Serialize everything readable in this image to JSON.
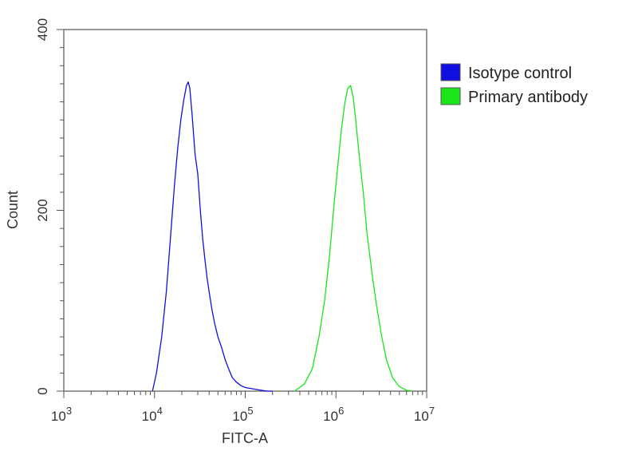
{
  "chart_data": {
    "type": "line",
    "xlabel": "FITC-A",
    "ylabel": "Count",
    "x_scale": "log",
    "xlim": [
      1000,
      10000000
    ],
    "ylim": [
      0,
      400
    ],
    "x_ticks": [
      {
        "value": 1000,
        "base": "10",
        "exp": "3"
      },
      {
        "value": 10000,
        "base": "10",
        "exp": "4"
      },
      {
        "value": 100000,
        "base": "10",
        "exp": "5"
      },
      {
        "value": 1000000,
        "base": "10",
        "exp": "6"
      },
      {
        "value": 10000000,
        "base": "10",
        "exp": "7"
      }
    ],
    "y_ticks": [
      {
        "value": 0,
        "label": "0"
      },
      {
        "value": 200,
        "label": "200"
      },
      {
        "value": 400,
        "label": "400"
      }
    ],
    "grid": false,
    "legend_position": "right",
    "series": [
      {
        "name": "Isotype control",
        "color": "#1010e0",
        "x": [
          9500,
          10500,
          12000,
          13500,
          15000,
          16500,
          18000,
          19500,
          21000,
          22500,
          23500,
          24500,
          26000,
          28000,
          30000,
          32000,
          34000,
          36000,
          38000,
          40000,
          43000,
          46000,
          50000,
          55000,
          60000,
          66000,
          72000,
          80000,
          90000,
          100000,
          115000,
          130000,
          150000,
          175000,
          200000
        ],
        "values": [
          0,
          20,
          60,
          110,
          170,
          225,
          268,
          300,
          322,
          338,
          342,
          335,
          305,
          262,
          240,
          200,
          168,
          145,
          125,
          110,
          90,
          75,
          60,
          48,
          35,
          24,
          15,
          10,
          6,
          4,
          3,
          2,
          1,
          0,
          0
        ]
      },
      {
        "name": "Primary antibody",
        "color": "#19e619",
        "x": [
          350000,
          450000,
          550000,
          650000,
          750000,
          850000,
          950000,
          1050000,
          1150000,
          1250000,
          1350000,
          1450000,
          1550000,
          1650000,
          1800000,
          2000000,
          2200000,
          2500000,
          2800000,
          3200000,
          3600000,
          4200000,
          5000000,
          6000000,
          7000000
        ],
        "values": [
          0,
          8,
          25,
          60,
          100,
          150,
          205,
          250,
          290,
          318,
          335,
          338,
          325,
          300,
          262,
          220,
          175,
          130,
          95,
          60,
          35,
          15,
          5,
          1,
          0
        ]
      }
    ]
  }
}
